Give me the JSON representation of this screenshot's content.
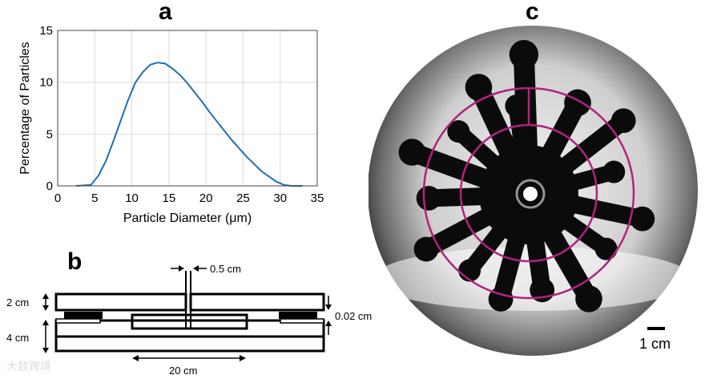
{
  "panels": {
    "a": "a",
    "b": "b",
    "c": "c"
  },
  "chart_data": {
    "type": "line",
    "title": "",
    "xlabel": "Particle Diameter (μm)",
    "ylabel": "Percentage of Particles",
    "xlim": [
      0,
      35
    ],
    "ylim": [
      0,
      15
    ],
    "xticks": [
      0,
      5,
      10,
      15,
      20,
      25,
      30,
      35
    ],
    "yticks": [
      0,
      5,
      10,
      15
    ],
    "grid": true,
    "color": "#1f6fb4",
    "series": [
      {
        "x": [
          2.5,
          4.5,
          5.5,
          6.5,
          7.5,
          8.5,
          9.5,
          10.5,
          11.5,
          12.5,
          13.5,
          14.5,
          15.5,
          16.5,
          17.5,
          18.5,
          19.5,
          20.5,
          21.5,
          22.5,
          23.5,
          24.5,
          25.5,
          26.5,
          27.5,
          28.5,
          29.5,
          30.5,
          31.5,
          33
        ],
        "y": [
          0,
          0.1,
          1.0,
          2.4,
          4.3,
          6.3,
          8.3,
          10.0,
          11.0,
          11.7,
          11.9,
          11.8,
          11.3,
          10.7,
          9.9,
          9.0,
          8.1,
          7.1,
          6.2,
          5.3,
          4.4,
          3.6,
          2.8,
          2.1,
          1.4,
          0.9,
          0.4,
          0.1,
          0,
          0
        ]
      }
    ]
  },
  "diagram": {
    "dim_gap": "0.5 cm",
    "dim_top": "2 cm",
    "dim_bottom": "4 cm",
    "dim_thin": "0.02 cm",
    "dim_width": "20 cm"
  },
  "photo": {
    "scale_label": "1 cm",
    "ring_color": "#b0237f"
  },
  "watermark": "大数跨境"
}
